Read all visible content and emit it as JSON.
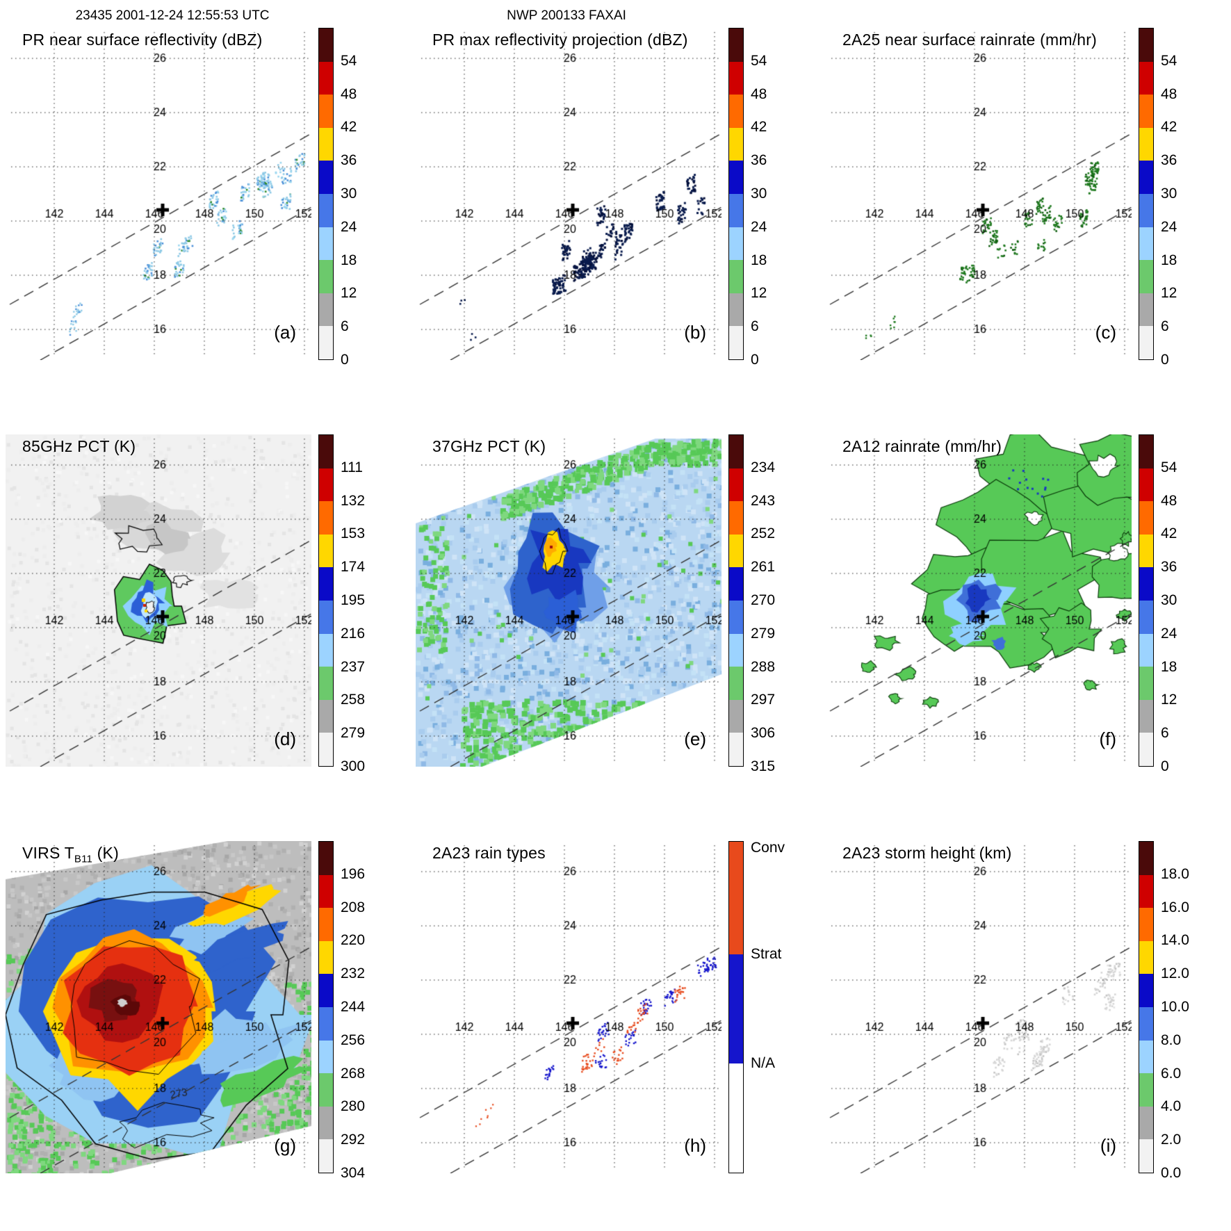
{
  "header": {
    "left_title": "23435 2001-12-24 12:55:53 UTC",
    "center_title": "NWP 200133 FAXAI"
  },
  "axes": {
    "lon_ticks": [
      "142",
      "144",
      "146",
      "148",
      "150",
      "152"
    ],
    "lat_ticks": [
      "26",
      "24",
      "22",
      "20",
      "18",
      "16"
    ]
  },
  "palettes": {
    "step10": [
      "#4a0a0a",
      "#cf0000",
      "#ff6a00",
      "#ffd700",
      "#0a0ac8",
      "#4677e8",
      "#9cd3ff",
      "#6cc96c",
      "#a9a9a9",
      "#f2f2f2"
    ],
    "raintypes": [
      {
        "label": "Conv",
        "color": "#e84a1c",
        "frac": 0.34
      },
      {
        "label": "Strat",
        "color": "#1515cc",
        "frac": 0.33
      },
      {
        "label": "N/A",
        "color": "#ffffff",
        "frac": 0.33
      }
    ]
  },
  "panels": [
    {
      "letter": "(a)",
      "title": "PR near surface reflectivity (dBZ)",
      "scene": "specksBlue",
      "cbar": "step10",
      "ticks": [
        "54",
        "48",
        "42",
        "36",
        "30",
        "24",
        "18",
        "12",
        "6",
        "0"
      ]
    },
    {
      "letter": "(b)",
      "title": "PR max reflectivity projection (dBZ)",
      "scene": "specksDark",
      "cbar": "step10",
      "ticks": [
        "54",
        "48",
        "42",
        "36",
        "30",
        "24",
        "18",
        "12",
        "6",
        "0"
      ]
    },
    {
      "letter": "(c)",
      "title": "2A25 near surface rainrate (mm/hr)",
      "scene": "specksGreen",
      "cbar": "step10",
      "ticks": [
        "54",
        "48",
        "42",
        "36",
        "30",
        "24",
        "18",
        "12",
        "6",
        "0"
      ]
    },
    {
      "letter": "(d)",
      "title": "85GHz PCT (K)",
      "scene": "pct85",
      "cbar": "step10",
      "ticks": [
        "111",
        "132",
        "153",
        "174",
        "195",
        "216",
        "237",
        "258",
        "279",
        "300"
      ]
    },
    {
      "letter": "(e)",
      "title": "37GHz PCT (K)",
      "scene": "pct37",
      "cbar": "step10",
      "ticks": [
        "234",
        "243",
        "252",
        "261",
        "270",
        "279",
        "288",
        "297",
        "306",
        "315"
      ]
    },
    {
      "letter": "(f)",
      "title": "2A12 rainrate (mm/hr)",
      "scene": "rain2a12",
      "cbar": "step10",
      "ticks": [
        "54",
        "48",
        "42",
        "36",
        "30",
        "24",
        "18",
        "12",
        "6",
        "0"
      ]
    },
    {
      "letter": "(g)",
      "title": "VIRS T",
      "title_sub": "B11",
      "title_tail": " (K)",
      "scene": "virs",
      "cbar": "step10",
      "ticks": [
        "196",
        "208",
        "220",
        "232",
        "244",
        "256",
        "268",
        "280",
        "292",
        "304"
      ],
      "contour_label": "273"
    },
    {
      "letter": "(h)",
      "title": "2A23 rain types",
      "scene": "raintypes",
      "cbar": "raintypes",
      "ticks": []
    },
    {
      "letter": "(i)",
      "title": "2A23 storm height (km)",
      "scene": "stormheight",
      "cbar": "step10",
      "ticks": [
        "18.0",
        "16.0",
        "14.0",
        "12.0",
        "10.0",
        "8.0",
        "6.0",
        "4.0",
        "2.0",
        "0.0"
      ]
    }
  ],
  "chart_data": [
    {
      "panel": "a",
      "type": "heatmap",
      "title": "PR near surface reflectivity (dBZ)",
      "units": "dBZ",
      "colorbar_ticks_top_to_bottom": [
        54,
        48,
        42,
        36,
        30,
        24,
        18,
        12,
        6,
        0
      ],
      "lon_gridlines": [
        142,
        144,
        146,
        148,
        150,
        152
      ],
      "lat_gridlines": [
        26,
        24,
        22,
        20,
        18,
        16
      ],
      "lon_range": [
        141,
        152.6
      ],
      "lat_range": [
        15.1,
        26.6
      ],
      "storm_center_marker_lonlat": [
        146.4,
        20.2
      ],
      "observed_pattern": "sparse light-blue echoes (roughly 18-30 dBZ) in the narrow PR swath northeast of the storm-center marker"
    },
    {
      "panel": "b",
      "type": "heatmap",
      "title": "PR max reflectivity projection (dBZ)",
      "units": "dBZ",
      "colorbar_ticks_top_to_bottom": [
        54,
        48,
        42,
        36,
        30,
        24,
        18,
        12,
        6,
        0
      ],
      "lon_gridlines": [
        142,
        144,
        146,
        148,
        150,
        152
      ],
      "lat_gridlines": [
        26,
        24,
        22,
        20,
        18,
        16
      ],
      "lon_range": [
        141,
        152.6
      ],
      "lat_range": [
        15.1,
        26.6
      ],
      "storm_center_marker_lonlat": [
        146.4,
        20.2
      ],
      "observed_pattern": "denser dark-navy echo cores (around 30 dBZ) projected along the PR swath northeast of the marker"
    },
    {
      "panel": "c",
      "type": "heatmap",
      "title": "2A25 near surface rainrate (mm/hr)",
      "units": "mm/hr",
      "colorbar_ticks_top_to_bottom": [
        54,
        48,
        42,
        36,
        30,
        24,
        18,
        12,
        6,
        0
      ],
      "lon_gridlines": [
        142,
        144,
        146,
        148,
        150,
        152
      ],
      "lat_gridlines": [
        26,
        24,
        22,
        20,
        18,
        16
      ],
      "lon_range": [
        141,
        152.6
      ],
      "lat_range": [
        15.1,
        26.6
      ],
      "storm_center_marker_lonlat": [
        146.4,
        20.2
      ],
      "observed_pattern": "scattered dark-green light-rain pixels along the PR swath northeast of the marker"
    },
    {
      "panel": "d",
      "type": "heatmap",
      "title": "85GHz PCT (K)",
      "units": "K",
      "colorbar_ticks_top_to_bottom": [
        111,
        132,
        153,
        174,
        195,
        216,
        237,
        258,
        279,
        300
      ],
      "lon_gridlines": [
        142,
        144,
        146,
        148,
        150,
        152
      ],
      "lat_gridlines": [
        26,
        24,
        22,
        20,
        18,
        16
      ],
      "lon_range": [
        141,
        152.6
      ],
      "lat_range": [
        15.1,
        26.6
      ],
      "storm_center_marker_lonlat": [
        146.4,
        20.2
      ],
      "observed_pattern": "warm gray background near 280-300 K with a compact cold eyewall ring (about 174-237 K, green/blue/cyan) around the storm center"
    },
    {
      "panel": "e",
      "type": "heatmap",
      "title": "37GHz PCT (K)",
      "units": "K",
      "colorbar_ticks_top_to_bottom": [
        234,
        243,
        252,
        261,
        270,
        279,
        288,
        297,
        306,
        315
      ],
      "lon_gridlines": [
        142,
        144,
        146,
        148,
        150,
        152
      ],
      "lat_gridlines": [
        26,
        24,
        22,
        20,
        18,
        16
      ],
      "lon_range": [
        141,
        152.6
      ],
      "lat_range": [
        15.1,
        26.6
      ],
      "storm_center_marker_lonlat": [
        146.4,
        20.2
      ],
      "observed_pattern": "broad light-blue 270-288 K field; deep-blue depression with a yellow minimum near 261 K at the eyewall just northwest of the marker; green areas above 288 K along swath edges"
    },
    {
      "panel": "f",
      "type": "heatmap",
      "title": "2A12 rainrate (mm/hr)",
      "units": "mm/hr",
      "colorbar_ticks_top_to_bottom": [
        54,
        48,
        42,
        36,
        30,
        24,
        18,
        12,
        6,
        0
      ],
      "lon_gridlines": [
        142,
        144,
        146,
        148,
        150,
        152
      ],
      "lat_gridlines": [
        26,
        24,
        22,
        20,
        18,
        16
      ],
      "lon_range": [
        141,
        152.6
      ],
      "lat_range": [
        15.1,
        26.6
      ],
      "storm_center_marker_lonlat": [
        146.4,
        20.2
      ],
      "observed_pattern": "widespread light-rain shield (green, 0-6 mm/hr) with an embedded blue core of roughly 12-30 mm/hr near the storm center and scattered green islands southwest"
    },
    {
      "panel": "g",
      "type": "heatmap",
      "title": "VIRS TB11 (K)",
      "units": "K",
      "colorbar_ticks_top_to_bottom": [
        196,
        208,
        220,
        232,
        244,
        256,
        268,
        280,
        292,
        304
      ],
      "lon_gridlines": [
        142,
        144,
        146,
        148,
        150,
        152
      ],
      "lat_gridlines": [
        26,
        24,
        22,
        20,
        18,
        16
      ],
      "lon_range": [
        141,
        152.6
      ],
      "lat_range": [
        15.1,
        26.6
      ],
      "storm_center_marker_lonlat": [
        146.4,
        20.2
      ],
      "contour_label": 273,
      "observed_pattern": "large cold central dense overcast with TB11 below about 208 K (dark red/maroon core), concentric orange-yellow-blue-cyan rings, green fringe and warm gray environment near 290-304 K; 273 K contour labeled"
    },
    {
      "panel": "h",
      "type": "heatmap",
      "title": "2A23 rain types",
      "units": "category",
      "categories_top_to_bottom": [
        "Conv",
        "Strat",
        "N/A"
      ],
      "lon_gridlines": [
        142,
        144,
        146,
        148,
        150,
        152
      ],
      "lat_gridlines": [
        26,
        24,
        22,
        20,
        18,
        16
      ],
      "lon_range": [
        141,
        152.6
      ],
      "lat_range": [
        15.1,
        26.6
      ],
      "storm_center_marker_lonlat": [
        146.4,
        20.2
      ],
      "observed_pattern": "mixed convective (orange) and stratiform (blue) pixels scattered along the PR swath northeast and southeast of the marker"
    },
    {
      "panel": "i",
      "type": "heatmap",
      "title": "2A23 storm height (km)",
      "units": "km",
      "colorbar_ticks_top_to_bottom": [
        18.0,
        16.0,
        14.0,
        12.0,
        10.0,
        8.0,
        6.0,
        4.0,
        2.0,
        0.0
      ],
      "lon_gridlines": [
        142,
        144,
        146,
        148,
        150,
        152
      ],
      "lat_gridlines": [
        26,
        24,
        22,
        20,
        18,
        16
      ],
      "lon_range": [
        141,
        152.6
      ],
      "lat_range": [
        15.1,
        26.6
      ],
      "storm_center_marker_lonlat": [
        146.4,
        20.2
      ],
      "observed_pattern": "faint light-gray storm-height pixels (mostly low values, about 2-6 km) along the PR swath"
    }
  ]
}
